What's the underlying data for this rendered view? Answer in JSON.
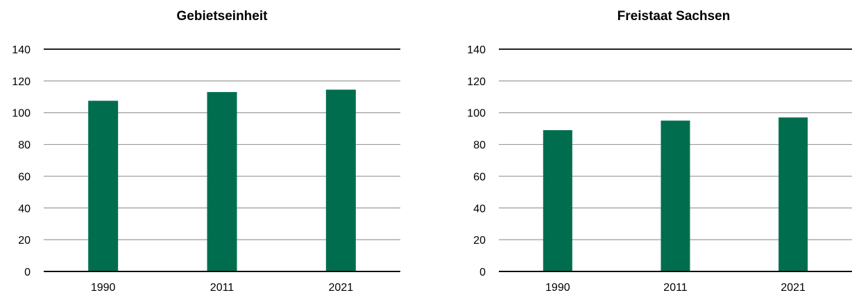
{
  "colors": {
    "bar": "#006e4e",
    "grid": "#9a9a9a",
    "axis": "#000000"
  },
  "chart_data": [
    {
      "type": "bar",
      "title": "Gebietseinheit",
      "categories": [
        "1990",
        "2011",
        "2021"
      ],
      "values": [
        107.5,
        113,
        114.5
      ],
      "xlabel": "",
      "ylabel": "",
      "ylim": [
        0,
        140
      ],
      "yticks": [
        "0",
        "20",
        "40",
        "60",
        "80",
        "100",
        "120",
        "140"
      ],
      "grid": true
    },
    {
      "type": "bar",
      "title": "Freistaat Sachsen",
      "categories": [
        "1990",
        "2011",
        "2021"
      ],
      "values": [
        89,
        95,
        97
      ],
      "xlabel": "",
      "ylabel": "",
      "ylim": [
        0,
        140
      ],
      "yticks": [
        "0",
        "20",
        "40",
        "60",
        "80",
        "100",
        "120",
        "140"
      ],
      "grid": true
    }
  ]
}
